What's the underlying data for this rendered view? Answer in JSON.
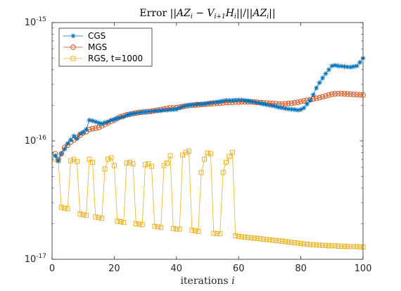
{
  "chart_data": {
    "type": "line",
    "title": "Error ||AZ_i − V_{i+1} H_i|| / ||AZ_i||",
    "xlabel": "iterations i",
    "ylabel": "",
    "xlim": [
      0,
      100
    ],
    "ylim": [
      1e-17,
      1e-15
    ],
    "yscale": "log",
    "xticks": [
      0,
      20,
      40,
      60,
      80,
      100
    ],
    "xtick_labels": [
      "0",
      "20",
      "40",
      "60",
      "80",
      "100"
    ],
    "yticks": [
      1e-17,
      1e-16,
      1e-15
    ],
    "ytick_labels": [
      {
        "base": "10",
        "exp": "-17"
      },
      {
        "base": "10",
        "exp": "-16"
      },
      {
        "base": "10",
        "exp": "-15"
      }
    ],
    "grid": false,
    "legend_position": "top-left",
    "x": [
      1,
      2,
      3,
      4,
      5,
      6,
      7,
      8,
      9,
      10,
      11,
      12,
      13,
      14,
      15,
      16,
      17,
      18,
      19,
      20,
      21,
      22,
      23,
      24,
      25,
      26,
      27,
      28,
      29,
      30,
      31,
      32,
      33,
      34,
      35,
      36,
      37,
      38,
      39,
      40,
      41,
      42,
      43,
      44,
      45,
      46,
      47,
      48,
      49,
      50,
      51,
      52,
      53,
      54,
      55,
      56,
      57,
      58,
      59,
      60,
      61,
      62,
      63,
      64,
      65,
      66,
      67,
      68,
      69,
      70,
      71,
      72,
      73,
      74,
      75,
      76,
      77,
      78,
      79,
      80,
      81,
      82,
      83,
      84,
      85,
      86,
      87,
      88,
      89,
      90,
      91,
      92,
      93,
      94,
      95,
      96,
      97,
      98,
      99,
      100
    ],
    "series": [
      {
        "name": "CGS",
        "color": "#0072bd",
        "marker": "asterisk",
        "values": [
          7.5e-17,
          6.8e-17,
          7.8e-17,
          8.5e-17,
          9.5e-17,
          1.02e-16,
          1.1e-16,
          1.05e-16,
          1.15e-16,
          1.18e-16,
          1.25e-16,
          1.5e-16,
          1.48e-16,
          1.45e-16,
          1.42e-16,
          1.4e-16,
          1.43e-16,
          1.45e-16,
          1.5e-16,
          1.52e-16,
          1.55e-16,
          1.58e-16,
          1.6e-16,
          1.65e-16,
          1.68e-16,
          1.7e-16,
          1.72e-16,
          1.73e-16,
          1.75e-16,
          1.76e-16,
          1.77e-16,
          1.78e-16,
          1.79e-16,
          1.8e-16,
          1.8e-16,
          1.82e-16,
          1.82e-16,
          1.83e-16,
          1.84e-16,
          1.85e-16,
          1.9e-16,
          1.95e-16,
          1.98e-16,
          2e-16,
          2.02e-16,
          2.03e-16,
          2.05e-16,
          2.05e-16,
          2.06e-16,
          2.08e-16,
          2.1e-16,
          2.12e-16,
          2.13e-16,
          2.15e-16,
          2.18e-16,
          2.2e-16,
          2.2e-16,
          2.2e-16,
          2.21e-16,
          2.22e-16,
          2.22e-16,
          2.2e-16,
          2.18e-16,
          2.16e-16,
          2.13e-16,
          2.1e-16,
          2.08e-16,
          2.05e-16,
          2.02e-16,
          2e-16,
          1.98e-16,
          1.95e-16,
          1.92e-16,
          1.9e-16,
          1.88e-16,
          1.86e-16,
          1.85e-16,
          1.84e-16,
          1.82e-16,
          1.84e-16,
          1.9e-16,
          2.05e-16,
          2.2e-16,
          2.45e-16,
          2.8e-16,
          3.1e-16,
          3.4e-16,
          3.7e-16,
          4e-16,
          4.3e-16,
          4.35e-16,
          4.3e-16,
          4.28e-16,
          4.25e-16,
          4.22e-16,
          4.2e-16,
          4.25e-16,
          4.3e-16,
          4.6e-16,
          5e-16
        ]
      },
      {
        "name": "MGS",
        "color": "#d95319",
        "marker": "circle",
        "values": [
          7.8e-17,
          7e-17,
          7.8e-17,
          8.8e-17,
          9.2e-17,
          9.8e-17,
          1.02e-16,
          1.07e-16,
          1.12e-16,
          1.17e-16,
          1.2e-16,
          1.25e-16,
          1.27e-16,
          1.28e-16,
          1.3e-16,
          1.34e-16,
          1.38e-16,
          1.42e-16,
          1.46e-16,
          1.5e-16,
          1.55e-16,
          1.6e-16,
          1.63e-16,
          1.66e-16,
          1.68e-16,
          1.7e-16,
          1.72e-16,
          1.74e-16,
          1.75e-16,
          1.76e-16,
          1.77e-16,
          1.78e-16,
          1.8e-16,
          1.82e-16,
          1.84e-16,
          1.86e-16,
          1.88e-16,
          1.9e-16,
          1.9e-16,
          1.91e-16,
          1.93e-16,
          1.95e-16,
          1.97e-16,
          1.99e-16,
          2e-16,
          2.01e-16,
          2.02e-16,
          2.03e-16,
          2.04e-16,
          2.05e-16,
          2.06e-16,
          2.07e-16,
          2.08e-16,
          2.09e-16,
          2.1e-16,
          2.11e-16,
          2.12e-16,
          2.12e-16,
          2.13e-16,
          2.13e-16,
          2.14e-16,
          2.14e-16,
          2.14e-16,
          2.14e-16,
          2.13e-16,
          2.12e-16,
          2.11e-16,
          2.1e-16,
          2.09e-16,
          2.08e-16,
          2.07e-16,
          2.06e-16,
          2.05e-16,
          2.05e-16,
          2.06e-16,
          2.07e-16,
          2.08e-16,
          2.1e-16,
          2.12e-16,
          2.15e-16,
          2.18e-16,
          2.2e-16,
          2.23e-16,
          2.26e-16,
          2.29e-16,
          2.32e-16,
          2.36e-16,
          2.4e-16,
          2.44e-16,
          2.48e-16,
          2.5e-16,
          2.51e-16,
          2.51e-16,
          2.5e-16,
          2.49e-16,
          2.48e-16,
          2.47e-16,
          2.46e-16,
          2.45e-16,
          2.44e-16
        ]
      },
      {
        "name": "RGS, t=1000",
        "color": "#edb120",
        "marker": "square",
        "values": [
          7e-17,
          6.8e-17,
          2.75e-17,
          2.7e-17,
          2.68e-17,
          6.8e-17,
          7e-17,
          6.7e-17,
          2.42e-17,
          2.38e-17,
          2.35e-17,
          7e-17,
          6.6e-17,
          2.28e-17,
          2.25e-17,
          2.22e-17,
          5.8e-17,
          7e-17,
          7.2e-17,
          6.2e-17,
          2.1e-17,
          2.08e-17,
          2.05e-17,
          6.5e-17,
          6.6e-17,
          6.4e-17,
          2e-17,
          1.98e-17,
          1.96e-17,
          6.3e-17,
          6.4e-17,
          6.1e-17,
          1.9e-17,
          1.88e-17,
          1.86e-17,
          6.2e-17,
          6.5e-17,
          7.5e-17,
          1.82e-17,
          1.8e-17,
          1.8e-17,
          7.6e-17,
          8e-17,
          8.2e-17,
          1.76e-17,
          1.74e-17,
          1.72e-17,
          5.4e-17,
          7e-17,
          7.9e-17,
          7.8e-17,
          1.66e-17,
          1.65e-17,
          1.64e-17,
          5.4e-17,
          6.6e-17,
          7.4e-17,
          8e-17,
          1.58e-17,
          1.56e-17,
          1.55e-17,
          1.54e-17,
          1.53e-17,
          1.52e-17,
          1.51e-17,
          1.5e-17,
          1.49e-17,
          1.48e-17,
          1.47e-17,
          1.46e-17,
          1.45e-17,
          1.44e-17,
          1.43e-17,
          1.42e-17,
          1.41e-17,
          1.4e-17,
          1.39e-17,
          1.38e-17,
          1.37e-17,
          1.36e-17,
          1.35e-17,
          1.34e-17,
          1.33e-17,
          1.33e-17,
          1.32e-17,
          1.32e-17,
          1.31e-17,
          1.31e-17,
          1.3e-17,
          1.3e-17,
          1.3e-17,
          1.29e-17,
          1.29e-17,
          1.29e-17,
          1.28e-17,
          1.28e-17,
          1.28e-17,
          1.28e-17,
          1.27e-17,
          1.27e-17
        ]
      }
    ]
  }
}
